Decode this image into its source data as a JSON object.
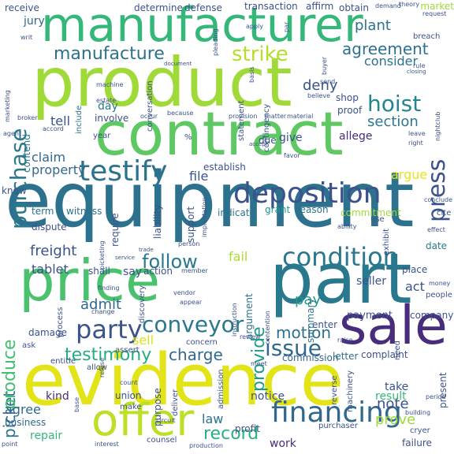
{
  "wordcloud": {
    "words": [
      {
        "text": "equipment",
        "color": "#2c728e"
      },
      {
        "text": "evidence",
        "color": "#e2e418"
      },
      {
        "text": "product",
        "color": "#a0da39"
      },
      {
        "text": "contract",
        "color": "#5ec962"
      },
      {
        "text": "part",
        "color": "#2a788e"
      },
      {
        "text": "price",
        "color": "#4ac16d"
      },
      {
        "text": "manufacturer",
        "color": "#35b779"
      },
      {
        "text": "sale",
        "color": "#472d7b"
      },
      {
        "text": "offer",
        "color": "#bddf26"
      },
      {
        "text": "deposition",
        "color": "#3b528b"
      },
      {
        "text": "testify",
        "color": "#2c728e"
      },
      {
        "text": "financing",
        "color": "#31688e"
      },
      {
        "text": "condition",
        "color": "#2a788e"
      },
      {
        "text": "conveyor",
        "color": "#2a788e"
      },
      {
        "text": "party",
        "color": "#3b528b"
      },
      {
        "text": "hoist",
        "color": "#25858e"
      },
      {
        "text": "purchase",
        "color": "#2a788e"
      },
      {
        "text": "manufacture",
        "color": "#2c728e"
      },
      {
        "text": "issue",
        "color": "#31688e"
      },
      {
        "text": "agreement",
        "color": "#2c728e"
      },
      {
        "text": "press",
        "color": "#3b528b"
      },
      {
        "text": "strike",
        "color": "#b5de2b"
      },
      {
        "text": "testimony",
        "color": "#25ac82"
      },
      {
        "text": "record",
        "color": "#2ab07f"
      },
      {
        "text": "follow",
        "color": "#2a788e"
      },
      {
        "text": "motion",
        "color": "#2c728e"
      },
      {
        "text": "provide",
        "color": "#1e9c89"
      },
      {
        "text": "charge",
        "color": "#31688e"
      },
      {
        "text": "picket",
        "color": "#2c728e"
      },
      {
        "text": "produce",
        "color": "#44bf70"
      },
      {
        "text": "section",
        "color": "#2a788e"
      },
      {
        "text": "consider",
        "color": "#2c728e"
      },
      {
        "text": "deny",
        "color": "#3b528b"
      },
      {
        "text": "plant",
        "color": "#2c728e"
      },
      {
        "text": "sell",
        "color": "#d8e219"
      },
      {
        "text": "argue",
        "color": "#e7e419"
      },
      {
        "text": "pay",
        "color": "#1f988b"
      },
      {
        "text": "fail",
        "color": "#addc30"
      },
      {
        "text": "admit",
        "color": "#31688e"
      },
      {
        "text": "tablet",
        "color": "#3b528b"
      },
      {
        "text": "freight",
        "color": "#3b528b"
      },
      {
        "text": "agree",
        "color": "#31688e"
      },
      {
        "text": "prove",
        "color": "#a0da39"
      },
      {
        "text": "note",
        "color": "#3b528b"
      },
      {
        "text": "work",
        "color": "#472d7b"
      },
      {
        "text": "repair",
        "color": "#35b779"
      },
      {
        "text": "law",
        "color": "#2c728e"
      },
      {
        "text": "claim",
        "color": "#31688e"
      },
      {
        "text": "property",
        "color": "#31688e"
      },
      {
        "text": "tell",
        "color": "#3b528b"
      },
      {
        "text": "day",
        "color": "#2a788e"
      },
      {
        "text": "jury",
        "color": "#31688e"
      },
      {
        "text": "term",
        "color": "#2c728e"
      },
      {
        "text": "know",
        "color": "#3b528b"
      },
      {
        "text": "witness",
        "color": "#2c728e"
      },
      {
        "text": "file",
        "color": "#3b528b"
      },
      {
        "text": "say",
        "color": "#3b528b"
      },
      {
        "text": "act",
        "color": "#3b528b"
      },
      {
        "text": "seller",
        "color": "#3b528b"
      },
      {
        "text": "allege",
        "color": "#472d7b"
      },
      {
        "text": "give",
        "color": "#3b528b"
      },
      {
        "text": "payment",
        "color": "#3b528b"
      },
      {
        "text": "commitment",
        "color": "#a0da39"
      },
      {
        "text": "grant",
        "color": "#1f988b"
      },
      {
        "text": "reason",
        "color": "#2c728e"
      },
      {
        "text": "indicate",
        "color": "#2c728e"
      },
      {
        "text": "establish",
        "color": "#3b528b"
      },
      {
        "text": "business",
        "color": "#31688e"
      },
      {
        "text": "kind",
        "color": "#472d7b"
      },
      {
        "text": "result",
        "color": "#35b779"
      },
      {
        "text": "take",
        "color": "#3b528b"
      },
      {
        "text": "notice",
        "color": "#3b528b"
      },
      {
        "text": "company",
        "color": "#3b528b"
      },
      {
        "text": "date",
        "color": "#2a788e"
      },
      {
        "text": "place",
        "color": "#3b528b"
      },
      {
        "text": "commission",
        "color": "#31688e"
      },
      {
        "text": "letter",
        "color": "#31688e"
      },
      {
        "text": "complaint",
        "color": "#3b528b"
      },
      {
        "text": "enter",
        "color": "#3b528b"
      },
      {
        "text": "summary",
        "color": "#2c728e"
      },
      {
        "text": "argument",
        "color": "#2c728e"
      },
      {
        "text": "receive",
        "color": "#3b528b"
      },
      {
        "text": "determine",
        "color": "#3b528b"
      },
      {
        "text": "defense",
        "color": "#3b528b"
      },
      {
        "text": "transaction",
        "color": "#3b528b"
      },
      {
        "text": "affirm",
        "color": "#3b528b"
      },
      {
        "text": "obtain",
        "color": "#3b528b"
      },
      {
        "text": "demand",
        "color": "#3b528b"
      },
      {
        "text": "theory",
        "color": "#3b528b"
      },
      {
        "text": "market",
        "color": "#a0da39"
      },
      {
        "text": "request",
        "color": "#3b528b"
      },
      {
        "text": "breach",
        "color": "#3b528b"
      },
      {
        "text": "contend",
        "color": "#2c728e"
      },
      {
        "text": "include",
        "color": "#2c728e"
      },
      {
        "text": "involve",
        "color": "#3b528b"
      },
      {
        "text": "shop",
        "color": "#3b528b"
      },
      {
        "text": "proof",
        "color": "#3b528b"
      },
      {
        "text": "statement",
        "color": "#3b528b"
      },
      {
        "text": "contingency",
        "color": "#3b528b"
      },
      {
        "text": "basis",
        "color": "#3b528b"
      },
      {
        "text": "send",
        "color": "#3b528b"
      },
      {
        "text": "believe",
        "color": "#3b528b"
      },
      {
        "text": "provision",
        "color": "#3b528b"
      },
      {
        "text": "matter",
        "color": "#3b528b"
      },
      {
        "text": "material",
        "color": "#3b528b"
      },
      {
        "text": "conversation",
        "color": "#3b528b"
      },
      {
        "text": "because",
        "color": "#3b528b"
      },
      {
        "text": "due",
        "color": "#3b528b"
      },
      {
        "text": "favor",
        "color": "#3b528b"
      },
      {
        "text": "support",
        "color": "#3b528b"
      },
      {
        "text": "implantation",
        "color": "#3b528b"
      },
      {
        "text": "liability",
        "color": "#3b528b"
      },
      {
        "text": "require",
        "color": "#3b528b"
      },
      {
        "text": "dispute",
        "color": "#3b528b"
      },
      {
        "text": "action",
        "color": "#3b528b"
      },
      {
        "text": "member",
        "color": "#3b528b"
      },
      {
        "text": "shall",
        "color": "#3b528b"
      },
      {
        "text": "finding",
        "color": "#3b528b"
      },
      {
        "text": "discovery",
        "color": "#3b528b"
      },
      {
        "text": "vendor",
        "color": "#3b528b"
      },
      {
        "text": "appear",
        "color": "#3b528b"
      },
      {
        "text": "change",
        "color": "#3b528b"
      },
      {
        "text": "concern",
        "color": "#3b528b"
      },
      {
        "text": "damage",
        "color": "#3b528b"
      },
      {
        "text": "allow",
        "color": "#3b528b"
      },
      {
        "text": "entitle",
        "color": "#3b528b"
      },
      {
        "text": "union",
        "color": "#3b528b"
      },
      {
        "text": "purpose",
        "color": "#3b528b"
      },
      {
        "text": "deliver",
        "color": "#3b528b"
      },
      {
        "text": "make",
        "color": "#3b528b"
      },
      {
        "text": "profit",
        "color": "#3b528b"
      },
      {
        "text": "admission",
        "color": "#3b528b"
      },
      {
        "text": "reverse",
        "color": "#3b528b"
      },
      {
        "text": "machinery",
        "color": "#3b528b"
      },
      {
        "text": "present",
        "color": "#3b528b"
      },
      {
        "text": "purchaser",
        "color": "#3b528b"
      },
      {
        "text": "failure",
        "color": "#3b528b"
      },
      {
        "text": "counsel",
        "color": "#3b528b"
      },
      {
        "text": "interest",
        "color": "#3b528b"
      },
      {
        "text": "production",
        "color": "#3b528b"
      },
      {
        "text": "circuit",
        "color": "#3b528b"
      },
      {
        "text": "count",
        "color": "#3b528b"
      },
      {
        "text": "base",
        "color": "#3b528b"
      },
      {
        "text": "exhibit",
        "color": "#3b528b"
      },
      {
        "text": "effect",
        "color": "#3b528b"
      },
      {
        "text": "cite",
        "color": "#3b528b"
      },
      {
        "text": "conclude",
        "color": "#3b528b"
      },
      {
        "text": "ability",
        "color": "#3b528b"
      },
      {
        "text": "use",
        "color": "#3b528b"
      },
      {
        "text": "people",
        "color": "#3b528b"
      },
      {
        "text": "money",
        "color": "#3b528b"
      },
      {
        "text": "review",
        "color": "#3b528b"
      },
      {
        "text": "raise",
        "color": "#3b528b"
      },
      {
        "text": "need",
        "color": "#3b528b"
      },
      {
        "text": "period",
        "color": "#3b528b"
      },
      {
        "text": "building",
        "color": "#3b528b"
      },
      {
        "text": "buyer",
        "color": "#3b528b"
      },
      {
        "text": "cryer",
        "color": "#3b528b"
      },
      {
        "text": "point",
        "color": "#3b528b"
      },
      {
        "text": "meet",
        "color": "#3b528b"
      },
      {
        "text": "assert",
        "color": "#3b528b"
      },
      {
        "text": "ask",
        "color": "#3b528b"
      },
      {
        "text": "refuse",
        "color": "#3b528b"
      },
      {
        "text": "process",
        "color": "#3b528b"
      },
      {
        "text": "service",
        "color": "#3b528b"
      },
      {
        "text": "trade",
        "color": "#3b528b"
      },
      {
        "text": "picketing",
        "color": "#3b528b"
      },
      {
        "text": "person",
        "color": "#3b528b"
      },
      {
        "text": "instruction",
        "color": "#3b528b"
      },
      {
        "text": "contention",
        "color": "#3b528b"
      },
      {
        "text": "broker",
        "color": "#3b528b"
      },
      {
        "text": "accord",
        "color": "#3b528b"
      },
      {
        "text": "agent",
        "color": "#3b528b"
      },
      {
        "text": "marketing",
        "color": "#3b528b"
      },
      {
        "text": "estate",
        "color": "#3b528b"
      },
      {
        "text": "occur",
        "color": "#3b528b"
      },
      {
        "text": "machine",
        "color": "#3b528b"
      },
      {
        "text": "document",
        "color": "#3b528b"
      },
      {
        "text": "year",
        "color": "#3b528b"
      },
      {
        "text": "pleading",
        "color": "#3b528b"
      },
      {
        "text": "apply",
        "color": "#3b528b"
      },
      {
        "text": "par",
        "color": "#3b528b"
      },
      {
        "text": "rule",
        "color": "#3b528b"
      },
      {
        "text": "closing",
        "color": "#3b528b"
      },
      {
        "text": "leave",
        "color": "#3b528b"
      },
      {
        "text": "right",
        "color": "#3b528b"
      },
      {
        "text": "nightclub",
        "color": "#3b528b"
      },
      {
        "text": "accept",
        "color": "#3b528b"
      },
      {
        "text": "writ",
        "color": "#3b528b"
      },
      {
        "text": "%",
        "color": "#3b528b"
      }
    ]
  }
}
